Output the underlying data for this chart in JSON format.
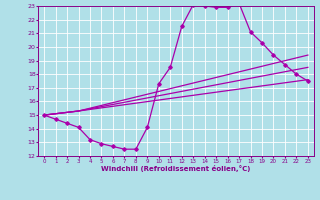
{
  "xlabel": "Windchill (Refroidissement éolien,°C)",
  "ylabel": "",
  "xlim": [
    -0.5,
    23.5
  ],
  "ylim": [
    12,
    23
  ],
  "xticks": [
    0,
    1,
    2,
    3,
    4,
    5,
    6,
    7,
    8,
    9,
    10,
    11,
    12,
    13,
    14,
    15,
    16,
    17,
    18,
    19,
    20,
    21,
    22,
    23
  ],
  "yticks": [
    12,
    13,
    14,
    15,
    16,
    17,
    18,
    19,
    20,
    21,
    22,
    23
  ],
  "bg_color": "#b0e0e8",
  "line_color": "#aa00aa",
  "lines": [
    {
      "x": [
        0,
        1,
        2,
        3,
        4,
        5,
        6,
        7,
        8,
        9,
        10,
        11,
        12,
        13,
        14,
        15,
        16,
        17,
        18,
        19,
        20,
        21,
        22,
        23
      ],
      "y": [
        15.0,
        14.7,
        14.4,
        14.1,
        13.2,
        12.9,
        12.7,
        12.5,
        12.5,
        14.1,
        17.3,
        18.5,
        21.5,
        23.1,
        23.0,
        22.9,
        22.9,
        23.2,
        21.1,
        20.3,
        19.4,
        18.7,
        18.0,
        17.5
      ]
    },
    {
      "x": [
        0,
        3,
        23
      ],
      "y": [
        15.0,
        15.3,
        19.4
      ]
    },
    {
      "x": [
        0,
        3,
        23
      ],
      "y": [
        15.0,
        15.3,
        18.5
      ]
    },
    {
      "x": [
        0,
        3,
        23
      ],
      "y": [
        15.0,
        15.3,
        17.6
      ]
    }
  ]
}
